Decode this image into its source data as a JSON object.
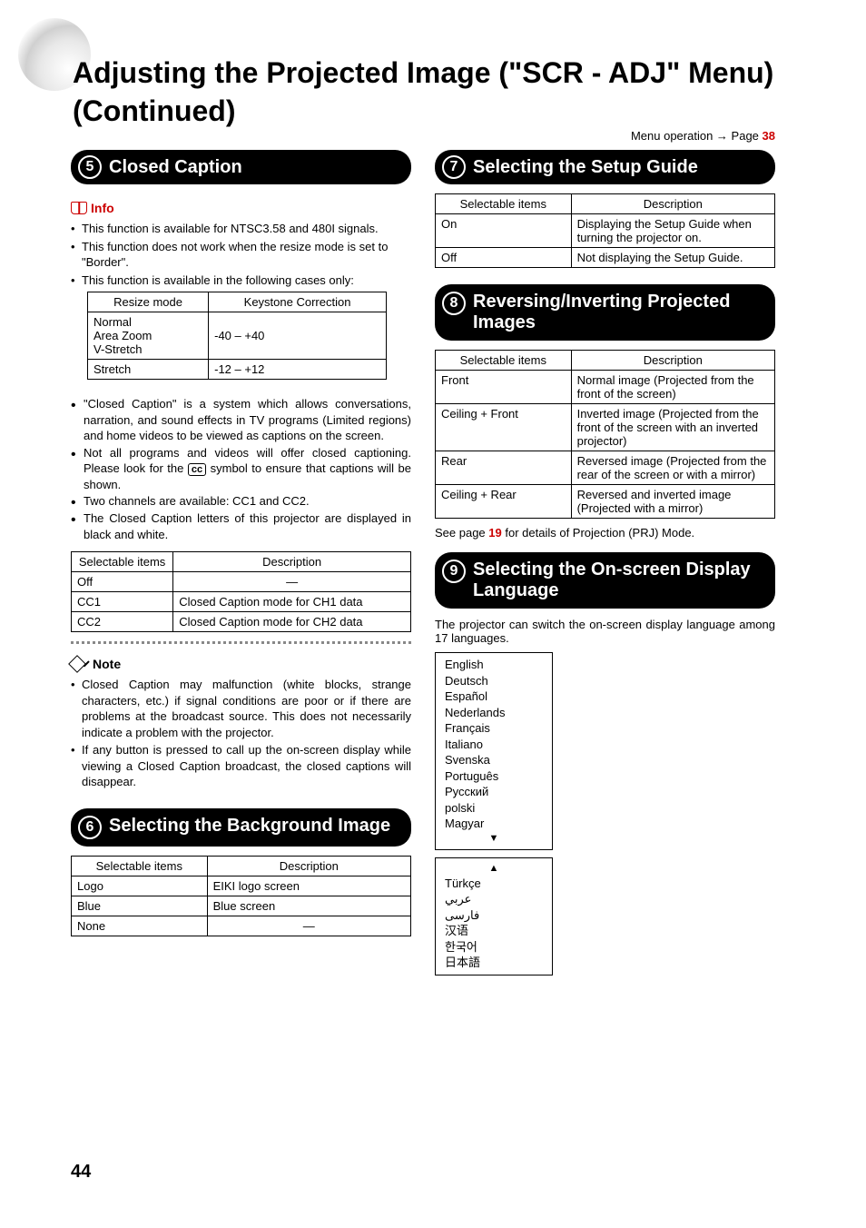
{
  "page": {
    "title": "Adjusting the Projected Image (\"SCR - ADJ\" Menu) (Continued)",
    "menu_operation_prefix": "Menu operation ",
    "menu_operation_page_label": "Page ",
    "menu_operation_page": "38",
    "number": "44"
  },
  "section5": {
    "num": "5",
    "title": "Closed Caption",
    "info_label": "Info",
    "info_bullets": [
      "This function is available for NTSC3.58 and 480I signals.",
      "This function does not work when the resize mode is set to \"Border\".",
      "This function is available in the following cases only:"
    ],
    "resize_table": {
      "headers": [
        "Resize mode",
        "Keystone Correction"
      ],
      "rows": [
        {
          "modes": "Normal\nArea Zoom\nV-Stretch",
          "range": "-40 – +40"
        },
        {
          "modes": "Stretch",
          "range": "-12 – +12"
        }
      ]
    },
    "body_bullets": [
      "\"Closed Caption\" is a system which allows conversations, narration, and sound effects in TV programs (Limited regions) and home videos to be viewed as captions on the screen.",
      "Not all programs and videos will offer closed captioning. Please look for the __CC__ symbol to ensure that captions will be shown.",
      "Two channels are available: CC1 and CC2.",
      "The Closed Caption letters of this projector are displayed in black and white."
    ],
    "cc_table": {
      "headers": [
        "Selectable items",
        "Description"
      ],
      "rows": [
        [
          "Off",
          "—"
        ],
        [
          "CC1",
          "Closed Caption mode for CH1 data"
        ],
        [
          "CC2",
          "Closed Caption mode for CH2 data"
        ]
      ]
    },
    "note_label": "Note",
    "note_bullets": [
      "Closed Caption may malfunction (white blocks, strange characters, etc.) if signal conditions are poor or if there are problems at the broadcast source. This does not necessarily indicate a problem with the projector.",
      "If any button is pressed to call up the on-screen display while viewing a Closed Caption broadcast, the closed captions will disappear."
    ]
  },
  "section6": {
    "num": "6",
    "title": "Selecting the Background Image",
    "table": {
      "headers": [
        "Selectable items",
        "Description"
      ],
      "rows": [
        [
          "Logo",
          "EIKI logo screen"
        ],
        [
          "Blue",
          "Blue screen"
        ],
        [
          "None",
          "—"
        ]
      ]
    }
  },
  "section7": {
    "num": "7",
    "title": "Selecting the Setup Guide",
    "table": {
      "headers": [
        "Selectable items",
        "Description"
      ],
      "rows": [
        [
          "On",
          "Displaying the Setup Guide when turning the projector on."
        ],
        [
          "Off",
          "Not displaying the Setup Guide."
        ]
      ]
    }
  },
  "section8": {
    "num": "8",
    "title": "Reversing/Inverting Projected Images",
    "table": {
      "headers": [
        "Selectable items",
        "Description"
      ],
      "rows": [
        [
          "Front",
          "Normal image (Projected from the front of the screen)"
        ],
        [
          "Ceiling + Front",
          "Inverted image (Projected from the front of the screen with an inverted projector)"
        ],
        [
          "Rear",
          "Reversed image (Projected from the rear of the screen or with a mirror)"
        ],
        [
          "Ceiling + Rear",
          "Reversed and inverted image (Projected with a mirror)"
        ]
      ]
    },
    "see_page_prefix": "See page ",
    "see_page_num": "19",
    "see_page_suffix": " for details of Projection (PRJ) Mode."
  },
  "section9": {
    "num": "9",
    "title": "Selecting the On-screen Display Language",
    "intro": "The projector can switch the on-screen display language among 17 languages.",
    "languages_box1": [
      "English",
      "Deutsch",
      "Español",
      "Nederlands",
      "Français",
      "Italiano",
      "Svenska",
      "Português",
      "Русский",
      "polski",
      "Magyar"
    ],
    "languages_box2": [
      "Türkçe",
      "عربي",
      "فارسی",
      "汉语",
      "한국어",
      "日本語"
    ]
  }
}
